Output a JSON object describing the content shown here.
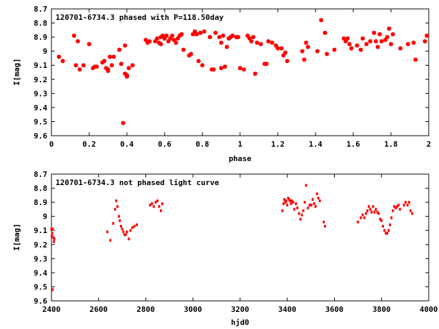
{
  "chart_data": [
    {
      "type": "scatter",
      "title": "120701-6734.3 phased with P=118.50day",
      "xlabel": "phase",
      "ylabel": "I[mag]",
      "xlim": [
        0,
        2
      ],
      "ylim": [
        9.6,
        8.7
      ],
      "y_inverted": true,
      "grid": false,
      "marker": "star",
      "color": "#ff0000",
      "x_ticks": [
        "0",
        "0.2",
        "0.4",
        "0.6",
        "0.8",
        "1",
        "1.2",
        "1.4",
        "1.6",
        "1.8",
        "2"
      ],
      "y_ticks": [
        "8.7",
        "8.8",
        "8.9",
        "9",
        "9.1",
        "9.2",
        "9.3",
        "9.4",
        "9.5",
        "9.6"
      ],
      "points": [
        [
          0.04,
          9.04
        ],
        [
          0.06,
          9.07
        ],
        [
          0.12,
          8.89
        ],
        [
          0.13,
          9.1
        ],
        [
          0.14,
          8.93
        ],
        [
          0.15,
          9.13
        ],
        [
          0.17,
          9.1
        ],
        [
          0.2,
          8.95
        ],
        [
          0.22,
          9.12
        ],
        [
          0.23,
          9.11
        ],
        [
          0.24,
          9.11
        ],
        [
          0.27,
          9.08
        ],
        [
          0.28,
          9.07
        ],
        [
          0.29,
          9.12
        ],
        [
          0.3,
          9.13
        ],
        [
          0.3,
          9.14
        ],
        [
          0.31,
          9.04
        ],
        [
          0.32,
          9.1
        ],
        [
          0.33,
          9.04
        ],
        [
          0.36,
          8.99
        ],
        [
          0.37,
          9.09
        ],
        [
          0.38,
          9.51
        ],
        [
          0.39,
          9.16
        ],
        [
          0.39,
          8.96
        ],
        [
          0.4,
          9.18
        ],
        [
          0.4,
          9.17
        ],
        [
          0.41,
          9.12
        ],
        [
          0.43,
          9.1
        ],
        [
          0.5,
          8.92
        ],
        [
          0.51,
          8.94
        ],
        [
          0.52,
          8.93
        ],
        [
          0.55,
          8.93
        ],
        [
          0.56,
          8.91
        ],
        [
          0.57,
          8.94
        ],
        [
          0.58,
          8.95
        ],
        [
          0.58,
          8.9
        ],
        [
          0.59,
          8.89
        ],
        [
          0.6,
          8.91
        ],
        [
          0.61,
          8.89
        ],
        [
          0.62,
          8.93
        ],
        [
          0.63,
          8.91
        ],
        [
          0.64,
          8.89
        ],
        [
          0.65,
          8.92
        ],
        [
          0.66,
          8.94
        ],
        [
          0.67,
          8.91
        ],
        [
          0.68,
          8.89
        ],
        [
          0.69,
          8.88
        ],
        [
          0.7,
          8.99
        ],
        [
          0.73,
          9.03
        ],
        [
          0.74,
          9.02
        ],
        [
          0.75,
          8.88
        ],
        [
          0.76,
          8.86
        ],
        [
          0.77,
          8.88
        ],
        [
          0.78,
          9.07
        ],
        [
          0.79,
          8.87
        ],
        [
          0.8,
          9.1
        ],
        [
          0.81,
          8.86
        ],
        [
          0.84,
          8.9
        ],
        [
          0.85,
          9.13
        ],
        [
          0.86,
          9.13
        ],
        [
          0.87,
          8.87
        ],
        [
          0.89,
          8.9
        ],
        [
          0.9,
          8.94
        ],
        [
          0.9,
          9.12
        ],
        [
          0.91,
          8.89
        ],
        [
          0.92,
          9.11
        ],
        [
          0.93,
          8.97
        ],
        [
          0.94,
          8.91
        ],
        [
          0.95,
          8.9
        ],
        [
          0.96,
          8.89
        ],
        [
          0.98,
          8.9
        ],
        [
          0.99,
          8.9
        ],
        [
          1.0,
          9.12
        ],
        [
          1.02,
          9.13
        ],
        [
          1.04,
          8.89
        ],
        [
          1.05,
          8.91
        ],
        [
          1.06,
          8.93
        ],
        [
          1.07,
          8.9
        ],
        [
          1.08,
          9.16
        ],
        [
          1.09,
          8.94
        ],
        [
          1.11,
          8.95
        ],
        [
          1.13,
          9.09
        ],
        [
          1.14,
          9.09
        ],
        [
          1.15,
          8.93
        ],
        [
          1.17,
          8.94
        ],
        [
          1.19,
          8.96
        ],
        [
          1.2,
          8.98
        ],
        [
          1.22,
          8.98
        ],
        [
          1.23,
          9.03
        ],
        [
          1.24,
          9.01
        ],
        [
          1.25,
          9.07
        ],
        [
          1.33,
          9.0
        ],
        [
          1.34,
          9.06
        ],
        [
          1.35,
          8.94
        ],
        [
          1.36,
          8.97
        ],
        [
          1.41,
          9.0
        ],
        [
          1.43,
          8.78
        ],
        [
          1.45,
          8.87
        ],
        [
          1.46,
          9.02
        ],
        [
          1.5,
          8.99
        ],
        [
          1.55,
          8.91
        ],
        [
          1.56,
          8.93
        ],
        [
          1.57,
          8.91
        ],
        [
          1.58,
          8.95
        ],
        [
          1.59,
          8.98
        ],
        [
          1.62,
          8.96
        ],
        [
          1.64,
          8.99
        ],
        [
          1.65,
          8.91
        ],
        [
          1.67,
          8.95
        ],
        [
          1.69,
          8.93
        ],
        [
          1.71,
          8.87
        ],
        [
          1.72,
          8.93
        ],
        [
          1.73,
          8.97
        ],
        [
          1.74,
          8.88
        ],
        [
          1.75,
          8.93
        ],
        [
          1.77,
          8.92
        ],
        [
          1.78,
          8.9
        ],
        [
          1.79,
          8.84
        ],
        [
          1.8,
          8.95
        ],
        [
          1.81,
          8.88
        ],
        [
          1.85,
          8.98
        ],
        [
          1.89,
          8.95
        ],
        [
          1.92,
          8.94
        ],
        [
          1.93,
          9.06
        ],
        [
          1.98,
          8.93
        ],
        [
          1.99,
          8.89
        ]
      ]
    },
    {
      "type": "scatter",
      "title": "120701-6734.3 not phased light curve",
      "xlabel": "hjd0",
      "ylabel": "I[mag]",
      "xlim": [
        2400,
        4000
      ],
      "ylim": [
        9.6,
        8.7
      ],
      "y_inverted": true,
      "grid": false,
      "marker": "dot",
      "color": "#ff0000",
      "x_ticks": [
        "2400",
        "2600",
        "2800",
        "3000",
        "3200",
        "3400",
        "3600",
        "3800",
        "4000"
      ],
      "y_ticks": [
        "8.7",
        "8.8",
        "8.9",
        "9",
        "9.1",
        "9.2",
        "9.3",
        "9.4",
        "9.5",
        "9.6"
      ],
      "points": [
        [
          2400,
          9.09
        ],
        [
          2401,
          9.14
        ],
        [
          2403,
          9.12
        ],
        [
          2405,
          9.09
        ],
        [
          2408,
          9.15
        ],
        [
          2410,
          9.18
        ],
        [
          2412,
          9.16
        ],
        [
          2405,
          9.52
        ],
        [
          2637,
          9.11
        ],
        [
          2650,
          9.17
        ],
        [
          2662,
          9.05
        ],
        [
          2670,
          8.95
        ],
        [
          2675,
          8.89
        ],
        [
          2680,
          8.93
        ],
        [
          2686,
          9.0
        ],
        [
          2690,
          9.03
        ],
        [
          2695,
          9.07
        ],
        [
          2700,
          9.09
        ],
        [
          2705,
          9.11
        ],
        [
          2710,
          9.13
        ],
        [
          2715,
          9.13
        ],
        [
          2720,
          9.11
        ],
        [
          2728,
          9.16
        ],
        [
          2735,
          9.1
        ],
        [
          2743,
          9.08
        ],
        [
          2752,
          9.07
        ],
        [
          2762,
          9.06
        ],
        [
          2818,
          8.92
        ],
        [
          2826,
          8.91
        ],
        [
          2834,
          8.93
        ],
        [
          2842,
          8.9
        ],
        [
          2850,
          8.89
        ],
        [
          2857,
          8.93
        ],
        [
          2864,
          8.96
        ],
        [
          2870,
          8.91
        ],
        [
          3380,
          8.96
        ],
        [
          3384,
          8.91
        ],
        [
          3388,
          8.88
        ],
        [
          3392,
          8.9
        ],
        [
          3396,
          8.89
        ],
        [
          3400,
          8.92
        ],
        [
          3404,
          8.87
        ],
        [
          3408,
          8.88
        ],
        [
          3412,
          8.89
        ],
        [
          3416,
          8.91
        ],
        [
          3420,
          8.89
        ],
        [
          3425,
          8.9
        ],
        [
          3430,
          8.95
        ],
        [
          3437,
          8.91
        ],
        [
          3443,
          8.94
        ],
        [
          3450,
          8.98
        ],
        [
          3456,
          9.02
        ],
        [
          3462,
          8.99
        ],
        [
          3468,
          8.96
        ],
        [
          3474,
          8.9
        ],
        [
          3480,
          8.78
        ],
        [
          3488,
          8.94
        ],
        [
          3495,
          8.92
        ],
        [
          3502,
          8.92
        ],
        [
          3508,
          8.88
        ],
        [
          3514,
          8.91
        ],
        [
          3520,
          8.93
        ],
        [
          3526,
          8.84
        ],
        [
          3532,
          8.87
        ],
        [
          3538,
          8.89
        ],
        [
          3555,
          9.04
        ],
        [
          3560,
          9.07
        ],
        [
          3700,
          9.04
        ],
        [
          3712,
          9.01
        ],
        [
          3720,
          8.99
        ],
        [
          3727,
          9.01
        ],
        [
          3734,
          8.98
        ],
        [
          3740,
          8.96
        ],
        [
          3746,
          8.93
        ],
        [
          3752,
          8.95
        ],
        [
          3758,
          8.97
        ],
        [
          3764,
          8.93
        ],
        [
          3770,
          8.97
        ],
        [
          3776,
          8.95
        ],
        [
          3782,
          8.97
        ],
        [
          3788,
          8.98
        ],
        [
          3794,
          9.02
        ],
        [
          3800,
          9.03
        ],
        [
          3806,
          9.07
        ],
        [
          3812,
          9.1
        ],
        [
          3818,
          9.12
        ],
        [
          3824,
          9.12
        ],
        [
          3830,
          9.1
        ],
        [
          3836,
          9.06
        ],
        [
          3842,
          9.01
        ],
        [
          3848,
          8.96
        ],
        [
          3854,
          8.93
        ],
        [
          3860,
          8.94
        ],
        [
          3866,
          8.93
        ],
        [
          3872,
          8.92
        ],
        [
          3878,
          8.95
        ],
        [
          3895,
          8.92
        ],
        [
          3902,
          8.9
        ],
        [
          3910,
          8.92
        ],
        [
          3917,
          8.9
        ],
        [
          3923,
          8.96
        ],
        [
          3930,
          8.98
        ]
      ]
    }
  ]
}
